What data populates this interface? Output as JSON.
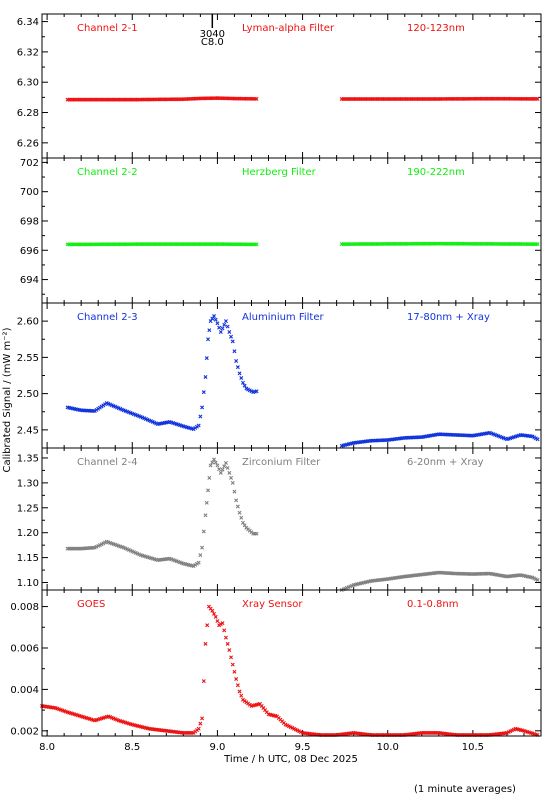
{
  "chart_data": {
    "type": "scatter",
    "x_axis": {
      "label": "Time / h UTC, 08 Dec 2025",
      "range": [
        7.97,
        10.9
      ],
      "ticks": [
        8.0,
        8.5,
        9.0,
        9.5,
        10.0,
        10.5
      ],
      "tick_labels": [
        "8.0",
        "8.5",
        "9.0",
        "9.5",
        "10.0",
        "10.5"
      ]
    },
    "y_axis_label": "Calibrated Signal / (mW m⁻²)",
    "footnote": "(1 minute averages)",
    "event_marker": {
      "x": 8.97,
      "label_top": "3040",
      "label_bottom": "C8.0"
    },
    "panels": [
      {
        "channel": "Channel 2-1",
        "filter": "Lyman-alpha Filter",
        "band": "120-123nm",
        "color": "#ee1111",
        "ylim": [
          6.25,
          6.345
        ],
        "yticks": [
          6.26,
          6.28,
          6.3,
          6.32,
          6.34
        ],
        "ytick_labels": [
          "6.26",
          "6.28",
          "6.30",
          "6.32",
          "6.34"
        ],
        "series": [
          [
            8.12,
            6.2885
          ],
          [
            8.5,
            6.2885
          ],
          [
            8.8,
            6.2888
          ],
          [
            8.9,
            6.2893
          ],
          [
            9.0,
            6.2895
          ],
          [
            9.1,
            6.2892
          ],
          [
            9.24,
            6.289
          ],
          null,
          [
            9.73,
            6.2889
          ],
          [
            10.2,
            6.2889
          ],
          [
            10.6,
            6.2891
          ],
          [
            10.88,
            6.289
          ]
        ]
      },
      {
        "channel": "Channel 2-2",
        "filter": "Herzberg Filter",
        "band": "190-222nm",
        "color": "#11ee11",
        "ylim": [
          692.4,
          702.3
        ],
        "yticks": [
          694,
          696,
          698,
          700,
          702
        ],
        "ytick_labels": [
          "694",
          "696",
          "698",
          "700",
          "702"
        ],
        "series": [
          [
            8.12,
            696.4
          ],
          [
            8.6,
            696.42
          ],
          [
            9.0,
            696.42
          ],
          [
            9.24,
            696.4
          ],
          null,
          [
            9.73,
            696.42
          ],
          [
            10.3,
            696.45
          ],
          [
            10.88,
            696.42
          ]
        ]
      },
      {
        "channel": "Channel 2-3",
        "filter": "Aluminium Filter",
        "band": "17-80nm + Xray",
        "color": "#1133dd",
        "ylim": [
          2.425,
          2.625
        ],
        "yticks": [
          2.45,
          2.5,
          2.55,
          2.6
        ],
        "ytick_labels": [
          "2.45",
          "2.50",
          "2.55",
          "2.60"
        ],
        "series": [
          [
            8.12,
            2.481
          ],
          [
            8.2,
            2.477
          ],
          [
            8.28,
            2.476
          ],
          [
            8.35,
            2.487
          ],
          [
            8.45,
            2.477
          ],
          [
            8.55,
            2.468
          ],
          [
            8.65,
            2.458
          ],
          [
            8.72,
            2.461
          ],
          [
            8.8,
            2.455
          ],
          [
            8.86,
            2.451
          ],
          [
            8.89,
            2.456
          ],
          [
            8.91,
            2.481
          ],
          [
            8.93,
            2.523
          ],
          [
            8.945,
            2.575
          ],
          [
            8.96,
            2.6
          ],
          [
            8.98,
            2.607
          ],
          [
            9.0,
            2.597
          ],
          [
            9.02,
            2.585
          ],
          [
            9.05,
            2.6
          ],
          [
            9.07,
            2.585
          ],
          [
            9.09,
            2.572
          ],
          [
            9.11,
            2.545
          ],
          [
            9.13,
            2.528
          ],
          [
            9.15,
            2.515
          ],
          [
            9.17,
            2.507
          ],
          [
            9.21,
            2.502
          ],
          [
            9.24,
            2.504
          ],
          null,
          [
            9.73,
            2.428
          ],
          [
            9.8,
            2.432
          ],
          [
            9.9,
            2.435
          ],
          [
            10.0,
            2.436
          ],
          [
            10.1,
            2.439
          ],
          [
            10.2,
            2.44
          ],
          [
            10.3,
            2.444
          ],
          [
            10.4,
            2.443
          ],
          [
            10.5,
            2.442
          ],
          [
            10.6,
            2.446
          ],
          [
            10.7,
            2.437
          ],
          [
            10.78,
            2.443
          ],
          [
            10.85,
            2.441
          ],
          [
            10.88,
            2.437
          ]
        ]
      },
      {
        "channel": "Channel 2-4",
        "filter": "Zirconium Filter",
        "band": "6-20nm + Xray",
        "color": "#808080",
        "ylim": [
          1.085,
          1.37
        ],
        "yticks": [
          1.1,
          1.15,
          1.2,
          1.25,
          1.3,
          1.35
        ],
        "ytick_labels": [
          "1.10",
          "1.15",
          "1.20",
          "1.25",
          "1.30",
          "1.35"
        ],
        "series": [
          [
            8.12,
            1.168
          ],
          [
            8.2,
            1.168
          ],
          [
            8.28,
            1.17
          ],
          [
            8.35,
            1.182
          ],
          [
            8.45,
            1.17
          ],
          [
            8.55,
            1.155
          ],
          [
            8.65,
            1.145
          ],
          [
            8.72,
            1.148
          ],
          [
            8.8,
            1.138
          ],
          [
            8.86,
            1.133
          ],
          [
            8.89,
            1.14
          ],
          [
            8.91,
            1.17
          ],
          [
            8.93,
            1.235
          ],
          [
            8.945,
            1.285
          ],
          [
            8.96,
            1.335
          ],
          [
            8.98,
            1.347
          ],
          [
            9.0,
            1.335
          ],
          [
            9.02,
            1.32
          ],
          [
            9.05,
            1.34
          ],
          [
            9.07,
            1.32
          ],
          [
            9.09,
            1.3
          ],
          [
            9.11,
            1.265
          ],
          [
            9.13,
            1.24
          ],
          [
            9.15,
            1.22
          ],
          [
            9.17,
            1.21
          ],
          [
            9.21,
            1.198
          ],
          [
            9.24,
            1.198
          ],
          null,
          [
            9.73,
            1.085
          ],
          [
            9.8,
            1.095
          ],
          [
            9.9,
            1.103
          ],
          [
            10.0,
            1.107
          ],
          [
            10.1,
            1.112
          ],
          [
            10.2,
            1.116
          ],
          [
            10.3,
            1.12
          ],
          [
            10.4,
            1.118
          ],
          [
            10.5,
            1.117
          ],
          [
            10.6,
            1.118
          ],
          [
            10.7,
            1.112
          ],
          [
            10.78,
            1.115
          ],
          [
            10.85,
            1.11
          ],
          [
            10.88,
            1.105
          ]
        ]
      },
      {
        "channel": "GOES",
        "filter": "Xray Sensor",
        "band": "0.1-0.8nm",
        "color": "#ee1111",
        "ylim": [
          0.00175,
          0.0088
        ],
        "yticks": [
          0.002,
          0.004,
          0.006,
          0.008
        ],
        "ytick_labels": [
          "0.002",
          "0.004",
          "0.006",
          "0.008"
        ],
        "series": [
          [
            7.97,
            0.0032
          ],
          [
            8.05,
            0.0031
          ],
          [
            8.12,
            0.0029
          ],
          [
            8.2,
            0.0027
          ],
          [
            8.28,
            0.0025
          ],
          [
            8.32,
            0.0026
          ],
          [
            8.36,
            0.0027
          ],
          [
            8.42,
            0.0025
          ],
          [
            8.5,
            0.0023
          ],
          [
            8.6,
            0.0021
          ],
          [
            8.7,
            0.002
          ],
          [
            8.8,
            0.0019
          ],
          [
            8.86,
            0.0019
          ],
          [
            8.89,
            0.0021
          ],
          [
            8.91,
            0.0026
          ],
          [
            8.93,
            0.0062
          ],
          [
            8.95,
            0.008
          ],
          [
            8.97,
            0.0078
          ],
          [
            8.99,
            0.0075
          ],
          [
            9.01,
            0.0071
          ],
          [
            9.03,
            0.0072
          ],
          [
            9.05,
            0.0065
          ],
          [
            9.07,
            0.0059
          ],
          [
            9.09,
            0.0052
          ],
          [
            9.11,
            0.0045
          ],
          [
            9.13,
            0.0039
          ],
          [
            9.15,
            0.0035
          ],
          [
            9.2,
            0.0032
          ],
          [
            9.25,
            0.0033
          ],
          [
            9.3,
            0.0028
          ],
          [
            9.35,
            0.0027
          ],
          [
            9.4,
            0.0023
          ],
          [
            9.5,
            0.0019
          ],
          [
            9.6,
            0.0018
          ],
          [
            9.7,
            0.0018
          ],
          [
            9.8,
            0.0019
          ],
          [
            9.9,
            0.0018
          ],
          [
            10.0,
            0.0018
          ],
          [
            10.1,
            0.0018
          ],
          [
            10.2,
            0.0019
          ],
          [
            10.3,
            0.0019
          ],
          [
            10.4,
            0.0018
          ],
          [
            10.5,
            0.0018
          ],
          [
            10.6,
            0.0018
          ],
          [
            10.7,
            0.0019
          ],
          [
            10.75,
            0.0021
          ],
          [
            10.8,
            0.002
          ],
          [
            10.88,
            0.0018
          ]
        ]
      }
    ]
  }
}
